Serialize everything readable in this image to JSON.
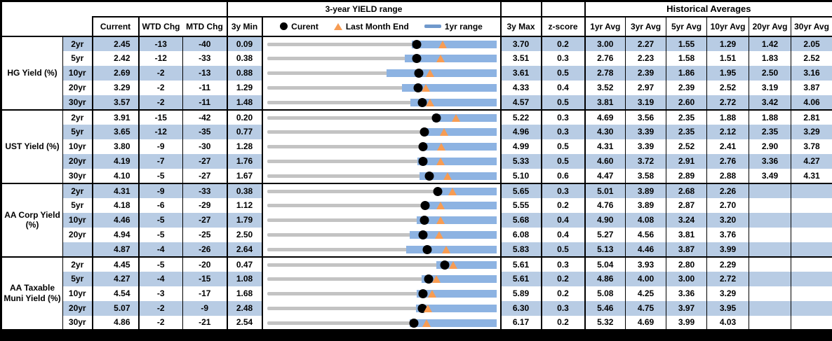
{
  "header": {
    "col_headers": {
      "current": "Current",
      "wtd": "WTD Chg",
      "mtd": "MTD Chg",
      "min": "3y Min",
      "max": "3y Max",
      "zscore": "z-score",
      "avg1": "1yr Avg",
      "avg3": "3yr Avg",
      "avg5": "5yr Avg",
      "avg10": "10yr Avg",
      "avg20": "20yr Avg",
      "avg30": "30yr Avg"
    },
    "historical_title": "Historical Averages"
  },
  "colors": {
    "band_blue": "#b8cce4",
    "bar_blue": "#8db3e2",
    "legend_dash_blue": "#7099cc",
    "triangle_orange": "#f79c53",
    "track_gray": "#c3c3c3",
    "border_black": "#000000"
  },
  "chart_data": {
    "type": "bullet-range",
    "title": "3-year YIELD range",
    "legend": {
      "current": "Curent",
      "last_month_end": "Last Month End",
      "range_1yr": "1yr range"
    },
    "groups": [
      {
        "label": "HG Yield (%)",
        "rows": [
          {
            "tenor": "2yr",
            "current": 2.45,
            "wtd": -13,
            "mtd": -40,
            "min": 0.09,
            "max": 3.7,
            "last_month_end": 2.85,
            "range_1yr_lo": 2.37,
            "range_1yr_hi": 3.7,
            "zscore": 0.2,
            "avgs": [
              3.0,
              2.27,
              1.55,
              1.29,
              1.42,
              2.05
            ]
          },
          {
            "tenor": "5yr",
            "current": 2.42,
            "wtd": -12,
            "mtd": -33,
            "min": 0.38,
            "max": 3.51,
            "last_month_end": 2.75,
            "range_1yr_lo": 2.26,
            "range_1yr_hi": 3.51,
            "zscore": 0.3,
            "avgs": [
              2.76,
              2.23,
              1.58,
              1.51,
              1.83,
              2.52
            ]
          },
          {
            "tenor": "10yr",
            "current": 2.69,
            "wtd": -2,
            "mtd": -13,
            "min": 0.88,
            "max": 3.61,
            "last_month_end": 2.82,
            "range_1yr_lo": 2.3,
            "range_1yr_hi": 3.61,
            "zscore": 0.5,
            "avgs": [
              2.78,
              2.39,
              1.86,
              1.95,
              2.5,
              3.16
            ]
          },
          {
            "tenor": "20yr",
            "current": 3.29,
            "wtd": -2,
            "mtd": -11,
            "min": 1.29,
            "max": 4.33,
            "last_month_end": 3.4,
            "range_1yr_lo": 3.08,
            "range_1yr_hi": 4.33,
            "zscore": 0.4,
            "avgs": [
              3.52,
              2.97,
              2.39,
              2.52,
              3.19,
              3.87
            ]
          },
          {
            "tenor": "30yr",
            "current": 3.57,
            "wtd": -2,
            "mtd": -11,
            "min": 1.48,
            "max": 4.57,
            "last_month_end": 3.68,
            "range_1yr_lo": 3.41,
            "range_1yr_hi": 4.57,
            "zscore": 0.5,
            "avgs": [
              3.81,
              3.19,
              2.6,
              2.72,
              3.42,
              4.06
            ]
          }
        ]
      },
      {
        "label": "UST Yield (%)",
        "rows": [
          {
            "tenor": "2yr",
            "current": 3.91,
            "wtd": -15,
            "mtd": -42,
            "min": 0.2,
            "max": 5.22,
            "last_month_end": 4.33,
            "range_1yr_lo": 3.83,
            "range_1yr_hi": 5.22,
            "zscore": 0.3,
            "avgs": [
              4.69,
              3.56,
              2.35,
              1.88,
              1.88,
              2.81
            ]
          },
          {
            "tenor": "5yr",
            "current": 3.65,
            "wtd": -12,
            "mtd": -35,
            "min": 0.77,
            "max": 4.96,
            "last_month_end": 4.0,
            "range_1yr_lo": 3.6,
            "range_1yr_hi": 4.96,
            "zscore": 0.3,
            "avgs": [
              4.3,
              3.39,
              2.35,
              2.12,
              2.35,
              3.29
            ]
          },
          {
            "tenor": "10yr",
            "current": 3.8,
            "wtd": -9,
            "mtd": -30,
            "min": 1.28,
            "max": 4.99,
            "last_month_end": 4.1,
            "range_1yr_lo": 3.78,
            "range_1yr_hi": 4.99,
            "zscore": 0.5,
            "avgs": [
              4.31,
              3.39,
              2.52,
              2.41,
              2.9,
              3.78
            ]
          },
          {
            "tenor": "20yr",
            "current": 4.19,
            "wtd": -7,
            "mtd": -27,
            "min": 1.76,
            "max": 5.33,
            "last_month_end": 4.46,
            "range_1yr_lo": 4.1,
            "range_1yr_hi": 5.33,
            "zscore": 0.5,
            "avgs": [
              4.6,
              3.72,
              2.91,
              2.76,
              3.36,
              4.27
            ]
          },
          {
            "tenor": "30yr",
            "current": 4.1,
            "wtd": -5,
            "mtd": -27,
            "min": 1.67,
            "max": 5.1,
            "last_month_end": 4.37,
            "range_1yr_lo": 3.95,
            "range_1yr_hi": 5.1,
            "zscore": 0.6,
            "avgs": [
              4.47,
              3.58,
              2.89,
              2.88,
              3.49,
              4.31
            ]
          }
        ]
      },
      {
        "label": "AA Corp Yield (%)",
        "rows": [
          {
            "tenor": "2yr",
            "current": 4.31,
            "wtd": -9,
            "mtd": -33,
            "min": 0.38,
            "max": 5.65,
            "last_month_end": 4.64,
            "range_1yr_lo": 4.24,
            "range_1yr_hi": 5.65,
            "zscore": 0.3,
            "avgs": [
              5.01,
              3.89,
              2.68,
              2.26,
              null,
              null
            ]
          },
          {
            "tenor": "5yr",
            "current": 4.18,
            "wtd": -6,
            "mtd": -29,
            "min": 1.12,
            "max": 5.55,
            "last_month_end": 4.47,
            "range_1yr_lo": 4.13,
            "range_1yr_hi": 5.55,
            "zscore": 0.2,
            "avgs": [
              4.76,
              3.89,
              2.87,
              2.7,
              null,
              null
            ]
          },
          {
            "tenor": "10yr",
            "current": 4.46,
            "wtd": -5,
            "mtd": -27,
            "min": 1.79,
            "max": 5.68,
            "last_month_end": 4.73,
            "range_1yr_lo": 4.33,
            "range_1yr_hi": 5.68,
            "zscore": 0.4,
            "avgs": [
              4.9,
              4.08,
              3.24,
              3.2,
              null,
              null
            ]
          },
          {
            "tenor": "20yr",
            "current": 4.94,
            "wtd": -5,
            "mtd": -25,
            "min": 2.5,
            "max": 6.08,
            "last_month_end": 5.19,
            "range_1yr_lo": 4.73,
            "range_1yr_hi": 6.08,
            "zscore": 0.4,
            "avgs": [
              5.27,
              4.56,
              3.81,
              3.76,
              null,
              null
            ]
          },
          {
            "tenor": "",
            "current": 4.87,
            "wtd": -4,
            "mtd": -26,
            "min": 2.64,
            "max": 5.83,
            "last_month_end": 5.13,
            "range_1yr_lo": 4.58,
            "range_1yr_hi": 5.83,
            "zscore": 0.5,
            "avgs": [
              5.13,
              4.46,
              3.87,
              3.99,
              null,
              null
            ]
          }
        ]
      },
      {
        "label": "AA Taxable Muni Yield (%)",
        "rows": [
          {
            "tenor": "2yr",
            "current": 4.45,
            "wtd": -5,
            "mtd": -20,
            "min": 0.47,
            "max": 5.61,
            "last_month_end": 4.65,
            "range_1yr_lo": 4.27,
            "range_1yr_hi": 5.61,
            "zscore": 0.3,
            "avgs": [
              5.04,
              3.93,
              2.8,
              2.29,
              null,
              null
            ]
          },
          {
            "tenor": "5yr",
            "current": 4.27,
            "wtd": -4,
            "mtd": -15,
            "min": 1.08,
            "max": 5.61,
            "last_month_end": 4.42,
            "range_1yr_lo": 4.13,
            "range_1yr_hi": 5.61,
            "zscore": 0.2,
            "avgs": [
              4.86,
              4.0,
              3.0,
              2.72,
              null,
              null
            ]
          },
          {
            "tenor": "10yr",
            "current": 4.54,
            "wtd": -3,
            "mtd": -17,
            "min": 1.68,
            "max": 5.89,
            "last_month_end": 4.71,
            "range_1yr_lo": 4.43,
            "range_1yr_hi": 5.89,
            "zscore": 0.2,
            "avgs": [
              5.08,
              4.25,
              3.36,
              3.29,
              null,
              null
            ]
          },
          {
            "tenor": "20yr",
            "current": 5.07,
            "wtd": -2,
            "mtd": -9,
            "min": 2.48,
            "max": 6.3,
            "last_month_end": 5.16,
            "range_1yr_lo": 4.96,
            "range_1yr_hi": 6.3,
            "zscore": 0.3,
            "avgs": [
              5.46,
              4.75,
              3.97,
              3.95,
              null,
              null
            ]
          },
          {
            "tenor": "30yr",
            "current": 4.86,
            "wtd": -2,
            "mtd": -21,
            "min": 2.54,
            "max": 6.17,
            "last_month_end": 5.07,
            "range_1yr_lo": 4.8,
            "range_1yr_hi": 6.17,
            "zscore": 0.2,
            "avgs": [
              5.32,
              4.69,
              3.99,
              4.03,
              null,
              null
            ]
          }
        ]
      }
    ]
  }
}
